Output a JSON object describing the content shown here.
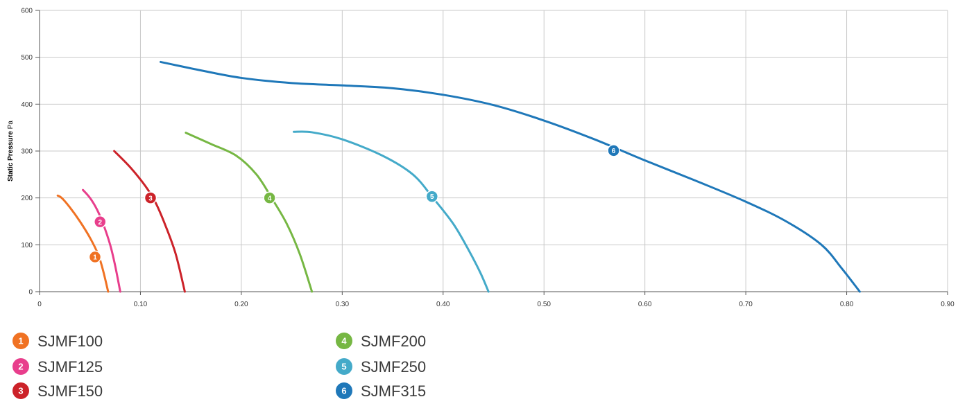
{
  "chart_data": {
    "type": "line",
    "title": "",
    "xlabel": "",
    "ylabel": {
      "bold": "Static Pressure",
      "unit": "Pa"
    },
    "xlim": [
      0,
      0.9
    ],
    "ylim": [
      0,
      600
    ],
    "grid": true,
    "legend_position": "bottom",
    "x_ticks": [
      {
        "value": 0,
        "label": "0"
      },
      {
        "value": 0.1,
        "label": "0.10"
      },
      {
        "value": 0.2,
        "label": "0.20"
      },
      {
        "value": 0.3,
        "label": "0.30"
      },
      {
        "value": 0.4,
        "label": "0.40"
      },
      {
        "value": 0.5,
        "label": "0.50"
      },
      {
        "value": 0.6,
        "label": "0.60"
      },
      {
        "value": 0.7,
        "label": "0.70"
      },
      {
        "value": 0.8,
        "label": "0.80"
      },
      {
        "value": 0.9,
        "label": "0.90"
      }
    ],
    "y_ticks": [
      {
        "value": 0,
        "label": "0"
      },
      {
        "value": 100,
        "label": "100"
      },
      {
        "value": 200,
        "label": "200"
      },
      {
        "value": 300,
        "label": "300"
      },
      {
        "value": 400,
        "label": "400"
      },
      {
        "value": 500,
        "label": "500"
      },
      {
        "value": 600,
        "label": "600"
      }
    ],
    "series": [
      {
        "number": "1",
        "name": "SJMF100",
        "color": "#f07223",
        "points": [
          [
            0.018,
            205
          ],
          [
            0.022,
            200
          ],
          [
            0.03,
            180
          ],
          [
            0.04,
            150
          ],
          [
            0.05,
            115
          ],
          [
            0.058,
            80
          ],
          [
            0.063,
            45
          ],
          [
            0.068,
            0
          ]
        ],
        "marker": [
          0.055,
          74
        ]
      },
      {
        "number": "2",
        "name": "SJMF125",
        "color": "#e83e8c",
        "points": [
          [
            0.043,
            217
          ],
          [
            0.05,
            200
          ],
          [
            0.057,
            175
          ],
          [
            0.063,
            145
          ],
          [
            0.07,
            100
          ],
          [
            0.075,
            55
          ],
          [
            0.08,
            0
          ]
        ],
        "marker": [
          0.06,
          149
        ]
      },
      {
        "number": "3",
        "name": "SJMF150",
        "color": "#cc2229",
        "points": [
          [
            0.074,
            300
          ],
          [
            0.09,
            265
          ],
          [
            0.105,
            225
          ],
          [
            0.115,
            190
          ],
          [
            0.125,
            140
          ],
          [
            0.135,
            80
          ],
          [
            0.144,
            0
          ]
        ],
        "marker": [
          0.11,
          200
        ]
      },
      {
        "number": "4",
        "name": "SJMF200",
        "color": "#76b743",
        "points": [
          [
            0.145,
            339
          ],
          [
            0.17,
            315
          ],
          [
            0.195,
            290
          ],
          [
            0.215,
            250
          ],
          [
            0.23,
            200
          ],
          [
            0.245,
            145
          ],
          [
            0.258,
            80
          ],
          [
            0.27,
            0
          ]
        ],
        "marker": [
          0.228,
          200
        ]
      },
      {
        "number": "5",
        "name": "SJMF250",
        "color": "#44aac9",
        "points": [
          [
            0.252,
            341
          ],
          [
            0.27,
            340
          ],
          [
            0.3,
            325
          ],
          [
            0.34,
            290
          ],
          [
            0.37,
            250
          ],
          [
            0.39,
            200
          ],
          [
            0.41,
            145
          ],
          [
            0.425,
            90
          ],
          [
            0.437,
            40
          ],
          [
            0.445,
            0
          ]
        ],
        "marker": [
          0.389,
          203
        ]
      },
      {
        "number": "6",
        "name": "SJMF315",
        "color": "#1f78b9",
        "points": [
          [
            0.12,
            490
          ],
          [
            0.16,
            472
          ],
          [
            0.2,
            456
          ],
          [
            0.25,
            445
          ],
          [
            0.3,
            440
          ],
          [
            0.35,
            434
          ],
          [
            0.4,
            420
          ],
          [
            0.45,
            398
          ],
          [
            0.5,
            365
          ],
          [
            0.55,
            325
          ],
          [
            0.6,
            280
          ],
          [
            0.65,
            237
          ],
          [
            0.7,
            192
          ],
          [
            0.74,
            150
          ],
          [
            0.775,
            100
          ],
          [
            0.795,
            50
          ],
          [
            0.813,
            0
          ]
        ],
        "marker": [
          0.569,
          301
        ]
      }
    ]
  },
  "legend": {
    "columns": [
      [
        0,
        1,
        2
      ],
      [
        3,
        4,
        5
      ]
    ]
  }
}
